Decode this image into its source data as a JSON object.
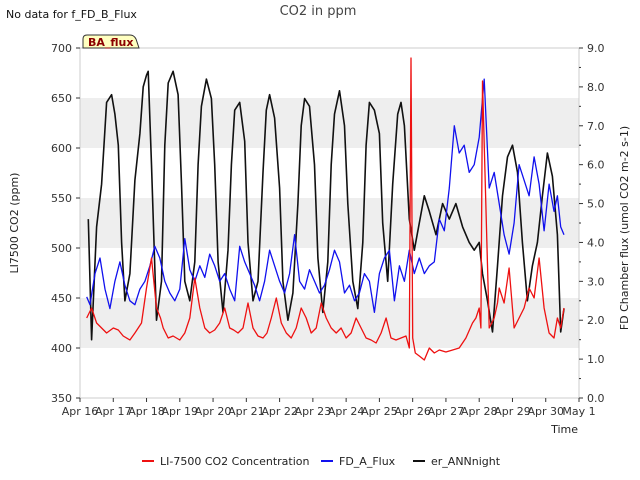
{
  "header": {
    "title": "CO2 in ppm",
    "no_data_note": "No data for f_FD_B_Flux",
    "badge": "BA_flux"
  },
  "colors": {
    "co2": "#ee1111",
    "fd_a": "#1111ee",
    "ann": "#111111",
    "band": "#eeeeee",
    "badge_fill": "#ffffc0"
  },
  "chart_data": {
    "type": "line",
    "xlabel": "Time",
    "ylabel_left": "LI7500 CO2 (ppm)",
    "ylabel_right": "FD Chamber flux (umol CO2 m-2 s-1)",
    "ylim_left": [
      350,
      700
    ],
    "ylim_right": [
      0.0,
      9.0
    ],
    "x_range_days": [
      16,
      31
    ],
    "x_ticks": [
      {
        "day": 16,
        "label": "Apr 16"
      },
      {
        "day": 17,
        "label": "Apr 17"
      },
      {
        "day": 18,
        "label": "Apr 18"
      },
      {
        "day": 19,
        "label": "Apr 19"
      },
      {
        "day": 20,
        "label": "Apr 20"
      },
      {
        "day": 21,
        "label": "Apr 21"
      },
      {
        "day": 22,
        "label": "Apr 22"
      },
      {
        "day": 23,
        "label": "Apr 23"
      },
      {
        "day": 24,
        "label": "Apr 24"
      },
      {
        "day": 25,
        "label": "Apr 25"
      },
      {
        "day": 26,
        "label": "Apr 26"
      },
      {
        "day": 27,
        "label": "Apr 27"
      },
      {
        "day": 28,
        "label": "Apr 28"
      },
      {
        "day": 29,
        "label": "Apr 29"
      },
      {
        "day": 30,
        "label": "Apr 30"
      },
      {
        "day": 31,
        "label": "May 1"
      }
    ],
    "y_ticks_left": [
      350,
      400,
      450,
      500,
      550,
      600,
      650,
      700
    ],
    "y_ticks_right": [
      "0.0",
      "1.0",
      "2.0",
      "3.0",
      "4.0",
      "5.0",
      "6.0",
      "7.0",
      "8.0",
      "9.0"
    ],
    "grid": "horizontal bands",
    "legend_position": "bottom",
    "series": [
      {
        "name": "LI-7500 CO2 Concentration",
        "axis": "left",
        "x": [
          16.2,
          16.35,
          16.5,
          16.65,
          16.8,
          17.0,
          17.15,
          17.3,
          17.5,
          17.65,
          17.85,
          18.0,
          18.15,
          18.3,
          18.42,
          18.5,
          18.65,
          18.8,
          19.0,
          19.15,
          19.3,
          19.45,
          19.6,
          19.75,
          19.9,
          20.05,
          20.2,
          20.35,
          20.5,
          20.62,
          20.75,
          20.9,
          21.05,
          21.2,
          21.35,
          21.5,
          21.62,
          21.75,
          21.9,
          22.05,
          22.2,
          22.35,
          22.5,
          22.65,
          22.8,
          22.95,
          23.1,
          23.25,
          23.4,
          23.55,
          23.7,
          23.85,
          24.0,
          24.15,
          24.3,
          24.45,
          24.6,
          24.75,
          24.9,
          25.05,
          25.2,
          25.35,
          25.5,
          25.65,
          25.8,
          25.9,
          25.95,
          26.0,
          26.08,
          26.2,
          26.35,
          26.5,
          26.65,
          26.8,
          27.0,
          27.2,
          27.4,
          27.6,
          27.8,
          27.9,
          28.0,
          28.05,
          28.1,
          28.3,
          28.45,
          28.55,
          28.6,
          28.75,
          28.9,
          29.05,
          29.2,
          29.35,
          29.5,
          29.65,
          29.8,
          29.95,
          30.1,
          30.25,
          30.35,
          30.45,
          30.55
        ],
        "y": [
          430,
          440,
          425,
          420,
          415,
          420,
          418,
          412,
          408,
          415,
          425,
          460,
          490,
          440,
          430,
          420,
          410,
          412,
          408,
          415,
          430,
          470,
          440,
          420,
          415,
          418,
          425,
          440,
          420,
          418,
          415,
          420,
          445,
          420,
          412,
          410,
          415,
          430,
          450,
          425,
          415,
          410,
          420,
          440,
          430,
          415,
          420,
          445,
          430,
          420,
          415,
          420,
          410,
          415,
          430,
          420,
          410,
          408,
          405,
          415,
          430,
          410,
          408,
          410,
          412,
          400,
          690,
          410,
          395,
          392,
          388,
          400,
          395,
          398,
          396,
          398,
          400,
          410,
          425,
          430,
          440,
          420,
          667,
          420,
          430,
          445,
          460,
          445,
          480,
          420,
          430,
          440,
          460,
          450,
          490,
          440,
          415,
          410,
          430,
          420,
          440
        ]
      },
      {
        "name": "FD_A_Flux",
        "axis": "right",
        "x": [
          16.2,
          16.3,
          16.45,
          16.6,
          16.75,
          16.9,
          17.05,
          17.2,
          17.35,
          17.5,
          17.65,
          17.8,
          17.95,
          18.1,
          18.25,
          18.4,
          18.55,
          18.7,
          18.85,
          19.0,
          19.15,
          19.3,
          19.45,
          19.6,
          19.75,
          19.9,
          20.05,
          20.2,
          20.35,
          20.5,
          20.65,
          20.8,
          20.95,
          21.1,
          21.25,
          21.4,
          21.55,
          21.7,
          21.85,
          22.0,
          22.15,
          22.3,
          22.45,
          22.6,
          22.75,
          22.9,
          23.05,
          23.2,
          23.35,
          23.5,
          23.65,
          23.8,
          23.95,
          24.1,
          24.25,
          24.4,
          24.55,
          24.7,
          24.85,
          25.0,
          25.15,
          25.3,
          25.45,
          25.6,
          25.75,
          25.9,
          26.05,
          26.2,
          26.35,
          26.5,
          26.65,
          26.8,
          26.95,
          27.1,
          27.25,
          27.4,
          27.55,
          27.7,
          27.85,
          28.0,
          28.15,
          28.3,
          28.45,
          28.6,
          28.75,
          28.9,
          29.05,
          29.2,
          29.35,
          29.5,
          29.65,
          29.8,
          29.95,
          30.1,
          30.25,
          30.35,
          30.45,
          30.55
        ],
        "y": [
          2.6,
          2.4,
          3.2,
          3.6,
          2.8,
          2.3,
          3.0,
          3.5,
          2.9,
          2.5,
          2.4,
          2.8,
          3.0,
          3.4,
          3.9,
          3.6,
          3.0,
          2.7,
          2.5,
          2.8,
          4.1,
          3.3,
          3.0,
          3.4,
          3.1,
          3.7,
          3.4,
          3.0,
          3.2,
          2.8,
          2.5,
          3.9,
          3.5,
          3.2,
          2.9,
          2.5,
          3.0,
          3.8,
          3.4,
          3.0,
          2.7,
          3.2,
          4.2,
          3.0,
          2.8,
          3.3,
          3.0,
          2.7,
          2.9,
          3.3,
          3.8,
          3.5,
          2.7,
          2.9,
          2.5,
          2.7,
          3.2,
          3.0,
          2.2,
          3.2,
          3.6,
          3.8,
          2.5,
          3.4,
          3.0,
          3.8,
          3.2,
          3.6,
          3.2,
          3.4,
          3.5,
          4.6,
          4.3,
          5.4,
          7.0,
          6.3,
          6.5,
          5.8,
          6.0,
          6.7,
          8.2,
          5.4,
          5.8,
          5.0,
          4.2,
          3.7,
          4.5,
          6.0,
          5.6,
          5.2,
          6.2,
          5.5,
          4.3,
          5.5,
          4.8,
          5.2,
          4.4,
          4.2
        ]
      },
      {
        "name": "er_ANNnight",
        "axis": "right",
        "x": [
          16.25,
          16.35,
          16.5,
          16.65,
          16.8,
          16.95,
          17.05,
          17.15,
          17.25,
          17.35,
          17.5,
          17.65,
          17.8,
          17.9,
          18.0,
          18.05,
          18.15,
          18.3,
          18.45,
          18.55,
          18.65,
          18.8,
          18.95,
          19.05,
          19.15,
          19.3,
          19.45,
          19.55,
          19.65,
          19.8,
          19.95,
          20.05,
          20.15,
          20.3,
          20.45,
          20.55,
          20.65,
          20.8,
          20.95,
          21.05,
          21.2,
          21.35,
          21.5,
          21.6,
          21.7,
          21.85,
          22.0,
          22.1,
          22.25,
          22.4,
          22.55,
          22.65,
          22.75,
          22.9,
          23.05,
          23.15,
          23.3,
          23.45,
          23.55,
          23.65,
          23.8,
          23.95,
          24.05,
          24.2,
          24.35,
          24.5,
          24.6,
          24.7,
          24.85,
          25.0,
          25.1,
          25.25,
          25.4,
          25.55,
          25.65,
          25.75,
          25.9,
          26.05,
          26.2,
          26.35,
          26.5,
          26.7,
          26.9,
          27.1,
          27.3,
          27.5,
          27.7,
          27.85,
          28.0,
          28.1,
          28.25,
          28.4,
          28.55,
          28.7,
          28.85,
          29.0,
          29.15,
          29.3,
          29.45,
          29.6,
          29.75,
          29.9,
          30.05,
          30.2,
          30.35,
          30.45,
          30.55
        ],
        "y": [
          4.6,
          1.5,
          4.4,
          5.5,
          7.6,
          7.8,
          7.3,
          6.5,
          4.0,
          2.5,
          3.2,
          5.6,
          6.8,
          8.0,
          8.3,
          8.4,
          6.0,
          2.0,
          3.0,
          6.5,
          8.1,
          8.4,
          7.8,
          5.5,
          3.0,
          2.5,
          3.5,
          6.0,
          7.5,
          8.2,
          7.7,
          6.0,
          3.5,
          2.2,
          3.8,
          6.0,
          7.4,
          7.6,
          6.6,
          4.0,
          2.5,
          3.0,
          5.8,
          7.4,
          7.8,
          7.2,
          5.4,
          3.0,
          2.0,
          2.7,
          5.0,
          7.0,
          7.7,
          7.5,
          6.0,
          3.6,
          2.2,
          3.5,
          6.0,
          7.3,
          7.9,
          7.0,
          5.0,
          3.0,
          2.3,
          4.0,
          6.5,
          7.6,
          7.4,
          6.8,
          4.5,
          3.0,
          5.5,
          7.3,
          7.6,
          7.0,
          4.6,
          3.8,
          4.5,
          5.2,
          4.8,
          4.2,
          5.0,
          4.6,
          5.0,
          4.4,
          4.0,
          3.8,
          4.0,
          3.2,
          2.5,
          1.7,
          3.4,
          5.2,
          6.2,
          6.5,
          5.8,
          4.0,
          2.5,
          3.4,
          4.0,
          5.2,
          6.3,
          5.7,
          4.2,
          1.7,
          2.3
        ]
      }
    ]
  }
}
